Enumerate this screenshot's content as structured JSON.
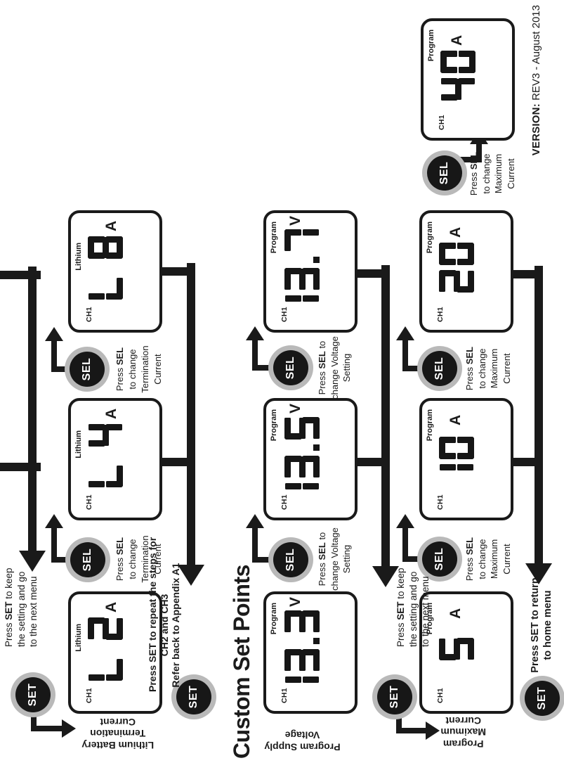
{
  "heading": "Custom Set Points",
  "version": {
    "label": "VERSION:",
    "value": " REV3 - August 2013"
  },
  "colors": {
    "ink": "#1a1a1a",
    "segment": "#161616",
    "button_ring": "#b9b9b9",
    "button_core": "#171717",
    "panel_bg": "#ffffff"
  },
  "row_labels": [
    {
      "name": "lithium-battery-termination-current",
      "lines": [
        "Lithium Battery",
        "Termination",
        "Current"
      ]
    },
    {
      "name": "program-supply-voltage",
      "lines": [
        "Program Supply",
        "Voltage"
      ]
    },
    {
      "name": "program-maximum-current",
      "lines": [
        "Program",
        "Maximum",
        "Current"
      ]
    }
  ],
  "panels": [
    {
      "ch": "CH1",
      "badge": "Lithium",
      "value": "L 2",
      "unit": "A"
    },
    {
      "ch": "CH1",
      "badge": "Lithium",
      "value": "L 4",
      "unit": "A"
    },
    {
      "ch": "CH1",
      "badge": "Lithium",
      "value": "L 8",
      "unit": "A"
    },
    {
      "ch": "CH1",
      "badge": "Program",
      "value": "13.3",
      "unit": "V"
    },
    {
      "ch": "CH1",
      "badge": "Program",
      "value": "13.5",
      "unit": "V"
    },
    {
      "ch": "CH1",
      "badge": "Program",
      "value": "13.7",
      "unit": "V"
    },
    {
      "ch": "CH1",
      "badge": "Program",
      "value": "5",
      "unit": "A"
    },
    {
      "ch": "CH1",
      "badge": "Program",
      "value": "10",
      "unit": "A"
    },
    {
      "ch": "CH1",
      "badge": "Program",
      "value": "20",
      "unit": "A"
    },
    {
      "ch": "CH1",
      "badge": "Program",
      "value": "40",
      "unit": "A"
    }
  ],
  "buttons": [
    {
      "label": "SET"
    },
    {
      "label": "SEL"
    },
    {
      "label": "SEL"
    },
    {
      "label": "SET"
    },
    {
      "label": "SEL"
    },
    {
      "label": "SEL"
    },
    {
      "label": "SET"
    },
    {
      "label": "SEL"
    },
    {
      "label": "SEL"
    },
    {
      "label": "SEL"
    },
    {
      "label": "SET"
    }
  ],
  "captions": [
    {
      "name": "set-keep-setting-1",
      "lines": [
        "Press SET to keep",
        "the setting and go",
        "to the next menu"
      ]
    },
    {
      "name": "sel-termination-1",
      "lines": [
        "Press SEL",
        "to change",
        "Termination",
        "Current"
      ]
    },
    {
      "name": "sel-termination-2",
      "lines": [
        "Press SEL",
        "to change",
        "Termination",
        "Current"
      ]
    },
    {
      "name": "set-repeat-steps",
      "bold": true,
      "lines": [
        "Press SET to repeat the steps for",
        "CH2 and CH3",
        "Refer back to Appendix A1"
      ]
    },
    {
      "name": "sel-voltage-1",
      "lines": [
        "Press SEL to",
        "change Voltage",
        "Setting"
      ]
    },
    {
      "name": "sel-voltage-2",
      "lines": [
        "Press SEL to",
        "change Voltage",
        "Setting"
      ]
    },
    {
      "name": "set-keep-setting-2",
      "lines": [
        "Press SET to keep",
        "the setting and go",
        "to the next menu"
      ]
    },
    {
      "name": "sel-maximum-1",
      "lines": [
        "Press SEL",
        "to change",
        "Maximum",
        "Current"
      ]
    },
    {
      "name": "sel-maximum-2",
      "lines": [
        "Press SEL",
        "to change",
        "Maximum",
        "Current"
      ]
    },
    {
      "name": "sel-maximum-3",
      "lines": [
        "Press SEL",
        "to change",
        "Maximum",
        "Current"
      ]
    },
    {
      "name": "set-return-home",
      "bold": true,
      "lines": [
        "Press SET to return",
        "to home menu"
      ]
    }
  ]
}
